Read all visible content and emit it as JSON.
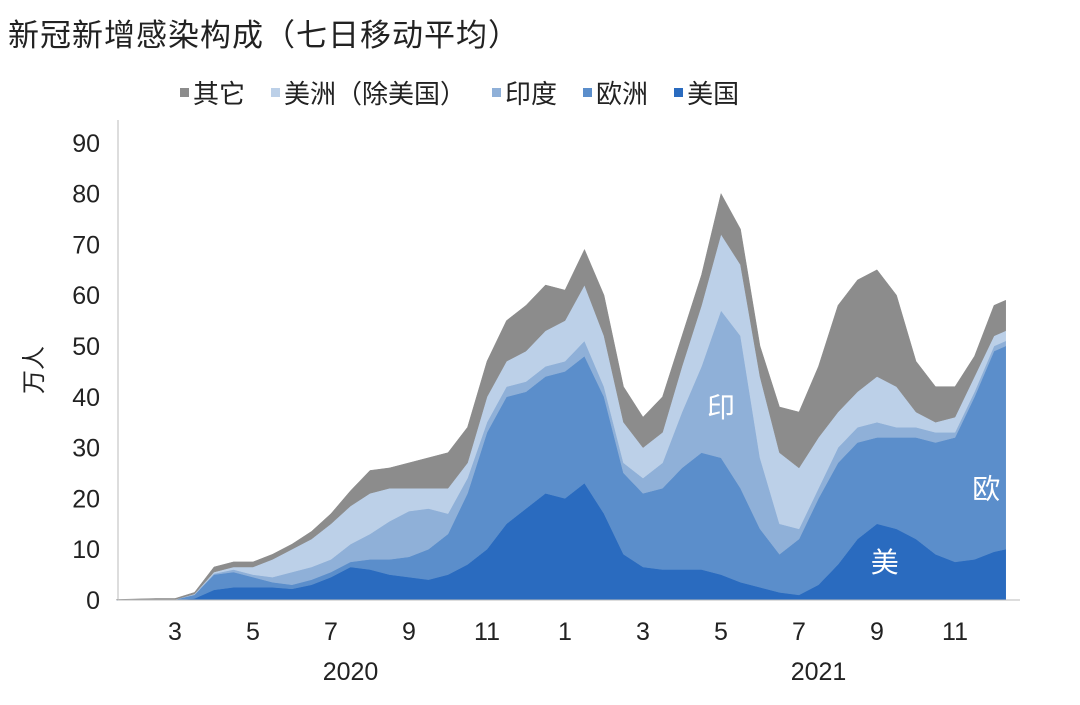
{
  "chart_data": {
    "type": "area",
    "stacked": true,
    "title": "新冠新增感染构成（七日移动平均）",
    "ylabel": "万人",
    "xlabel": "",
    "ylim": [
      0,
      90
    ],
    "yticks": [
      0,
      10,
      20,
      30,
      40,
      50,
      60,
      70,
      80,
      90
    ],
    "x_unit": "month index from Jan 2020 (1 = Jan 2020)",
    "x": [
      1.5,
      2,
      2.5,
      3,
      3.5,
      4,
      4.5,
      5,
      5.5,
      6,
      6.5,
      7,
      7.5,
      8,
      8.5,
      9,
      9.5,
      10,
      10.5,
      11,
      11.5,
      12,
      12.5,
      13,
      13.5,
      14,
      14.5,
      15,
      15.5,
      16,
      16.5,
      17,
      17.5,
      18,
      18.5,
      19,
      19.5,
      20,
      20.5,
      21,
      21.5,
      22,
      22.5,
      23,
      23.5,
      24,
      24.3
    ],
    "xticks": [
      {
        "x": 3,
        "label": "3"
      },
      {
        "x": 5,
        "label": "5"
      },
      {
        "x": 7,
        "label": "7"
      },
      {
        "x": 9,
        "label": "9"
      },
      {
        "x": 11,
        "label": "11"
      },
      {
        "x": 13,
        "label": "1"
      },
      {
        "x": 15,
        "label": "3"
      },
      {
        "x": 17,
        "label": "5"
      },
      {
        "x": 19,
        "label": "7"
      },
      {
        "x": 21,
        "label": "9"
      },
      {
        "x": 23,
        "label": "11"
      }
    ],
    "year_labels": [
      {
        "x": 7.5,
        "label": "2020"
      },
      {
        "x": 19.5,
        "label": "2021"
      }
    ],
    "legend_position": "top",
    "series": [
      {
        "name": "美国",
        "color": "#2a6bbf",
        "values": [
          0,
          0,
          0,
          0,
          0.3,
          2,
          2.5,
          2.5,
          2.5,
          2.2,
          3,
          4.5,
          6.5,
          6,
          5,
          4.5,
          4,
          5,
          7,
          10,
          15,
          18,
          21,
          20,
          23,
          17,
          9,
          6.5,
          6,
          6,
          6,
          5,
          3.5,
          2.5,
          1.5,
          1,
          3,
          7,
          12,
          15,
          14,
          12,
          9,
          7.5,
          8,
          9.5,
          10
        ]
      },
      {
        "name": "欧洲",
        "color": "#5b8ecb",
        "values": [
          0,
          0,
          0,
          0.1,
          0.7,
          3,
          3,
          2,
          1,
          0.8,
          1,
          1,
          1,
          2,
          3,
          4,
          6,
          8,
          14,
          23,
          25,
          23,
          23,
          25,
          25,
          23,
          16,
          14.5,
          16,
          20,
          23,
          23,
          18.5,
          11.5,
          7.5,
          11,
          17,
          20,
          19,
          17,
          18,
          20,
          22,
          24.5,
          32,
          39.5,
          40
        ]
      },
      {
        "name": "印度",
        "color": "#8fb0d8",
        "values": [
          0,
          0,
          0,
          0,
          0.1,
          0.2,
          0.5,
          0.5,
          1,
          2.5,
          2.5,
          2.5,
          3.5,
          5,
          7.5,
          9,
          8,
          4,
          3,
          2,
          2,
          2,
          2,
          2,
          3,
          2,
          2,
          3,
          5,
          11,
          17,
          29,
          30,
          14,
          6,
          2,
          2,
          3,
          3,
          3,
          2,
          2,
          2,
          1,
          1,
          1,
          1
        ]
      },
      {
        "name": "美洲（除美国）",
        "color": "#bcd0e8",
        "values": [
          0,
          0,
          0,
          0,
          0.1,
          0.3,
          0.5,
          1.5,
          3.5,
          4.5,
          5.5,
          7,
          7.5,
          8,
          6.5,
          4.5,
          4,
          5,
          3,
          5,
          5,
          6,
          7,
          8,
          11,
          10,
          8,
          6,
          6,
          9,
          12,
          15,
          14,
          16,
          14,
          12,
          10,
          7,
          7,
          9,
          8,
          3,
          2,
          3,
          3,
          2,
          2
        ]
      },
      {
        "name": "其它",
        "color": "#8c8c8c",
        "values": [
          0.1,
          0.2,
          0.3,
          0.2,
          0.3,
          1,
          1,
          1,
          1,
          1,
          1.5,
          2,
          3,
          4.5,
          4,
          5,
          6,
          7,
          7,
          7,
          8,
          9,
          9,
          6,
          7,
          8,
          7,
          6,
          7,
          6,
          6,
          8,
          7,
          6,
          9,
          11,
          14,
          21,
          22,
          21,
          18,
          10,
          7,
          6,
          4,
          6,
          6
        ]
      }
    ],
    "legend_order": [
      "其它",
      "美洲（除美国）",
      "印度",
      "欧洲",
      "美国"
    ],
    "annotations": [
      {
        "text": "印",
        "x": 17,
        "y": 36
      },
      {
        "text": "欧",
        "x": 23.8,
        "y": 20
      },
      {
        "text": "美",
        "x": 21.2,
        "y": 5.5
      }
    ]
  }
}
